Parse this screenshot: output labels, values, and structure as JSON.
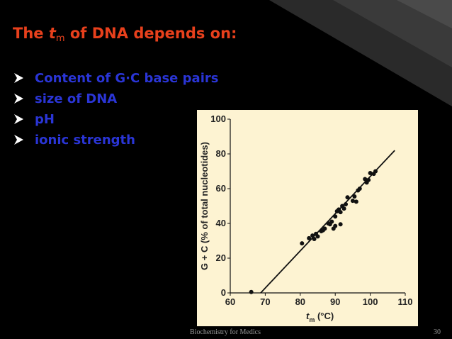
{
  "slide": {
    "title": {
      "prefix": "The ",
      "italic": "t",
      "sub": "m",
      "suffix": " of DNA depends on:"
    },
    "bullets": [
      "Content of G·C base pairs",
      "size of DNA",
      "pH",
      "ionic strength"
    ],
    "footer": "Biochemistry for Medics",
    "page": "30"
  },
  "chart_data": {
    "type": "scatter",
    "y_label": "G + C (% of total nucleotides)",
    "x_label": {
      "italic": "t",
      "sub": "m",
      "suffix": " (°C)"
    },
    "xlim": [
      60,
      110
    ],
    "ylim": [
      0,
      100
    ],
    "xticks": [
      60,
      70,
      80,
      90,
      100,
      110
    ],
    "yticks": [
      0,
      20,
      40,
      60,
      80,
      100
    ],
    "series": [
      {
        "type": "scatter",
        "color": "#111111",
        "x": [
          66,
          80.5,
          82.5,
          83.5,
          84,
          84.5,
          85,
          86,
          86.5,
          87,
          88,
          88.5,
          89,
          89.5,
          90,
          90,
          90.5,
          91,
          91.5,
          91.5,
          92,
          92.5,
          93,
          93.5,
          95,
          95.5,
          96,
          96.5,
          97,
          98.5,
          99,
          99.5,
          100,
          101,
          101.5
        ],
        "values": [
          0.5,
          28.5,
          31.5,
          33,
          31,
          34,
          32.5,
          35.5,
          36,
          37,
          40,
          39.5,
          41,
          37,
          38.5,
          44,
          47,
          48,
          39.5,
          46.5,
          50,
          48.5,
          51,
          55,
          53,
          55.5,
          52.5,
          59,
          60,
          65.5,
          63.5,
          65,
          69,
          68.5,
          70
        ]
      },
      {
        "type": "line",
        "color": "#111111",
        "x": [
          68.7,
          107
        ],
        "values": [
          0,
          82
        ]
      }
    ]
  }
}
